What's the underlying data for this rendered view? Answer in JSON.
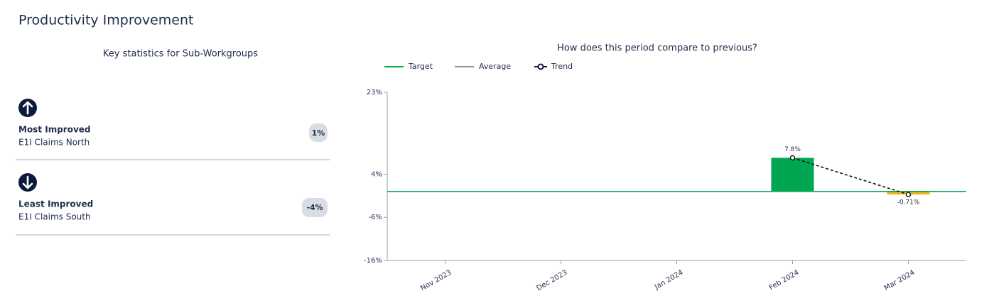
{
  "header": {
    "title": "Productivity Improvement"
  },
  "stats": {
    "title": "Key statistics for Sub-Workgroups",
    "items": [
      {
        "label": "Most Improved",
        "name": "E1I Claims North",
        "value": "1%"
      },
      {
        "label": "Least Improved",
        "name": "E1I Claims South",
        "value": "-4%"
      }
    ]
  },
  "chart_data": {
    "type": "bar",
    "title": "How does this period compare to previous?",
    "categories": [
      "Nov 2023",
      "Dec 2023",
      "Jan 2024",
      "Feb 2024",
      "Mar 2024"
    ],
    "values": [
      null,
      null,
      null,
      7.8,
      -0.71
    ],
    "value_labels": [
      null,
      null,
      null,
      "7.8%",
      "-0.71%"
    ],
    "colors": [
      null,
      null,
      null,
      "#00a651",
      "#f0b323"
    ],
    "series": [
      {
        "name": "Target",
        "color": "#00a651",
        "value": 0
      },
      {
        "name": "Average",
        "color": "#8a94a6"
      },
      {
        "name": "Trend",
        "color": "#0d1b3a",
        "values": [
          null,
          null,
          null,
          7.8,
          -0.71
        ]
      }
    ],
    "ylim": [
      -16,
      23
    ],
    "yticks": [
      {
        "value": 23,
        "label": "23%"
      },
      {
        "value": 4,
        "label": "4%"
      },
      {
        "value": -6,
        "label": "-6%"
      },
      {
        "value": -16,
        "label": "-16%"
      }
    ]
  }
}
